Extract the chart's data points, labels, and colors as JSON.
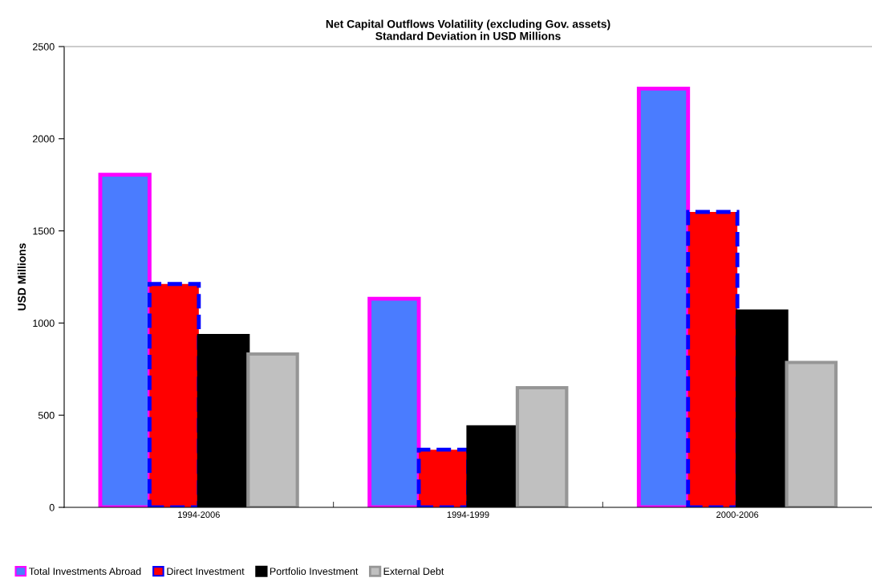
{
  "chart_data": {
    "type": "bar",
    "title": "Net Capital Outflows Volatility (excluding Gov. assets)\nStandard Deviation in USD Millions",
    "ylabel": "USD Millions",
    "categories": [
      "1994-2006",
      "1994-1999",
      "2000-2006"
    ],
    "series": [
      {
        "name": "Total Investments Abroad",
        "color": "#4a7cff",
        "values": [
          1805,
          1132,
          2272
        ]
      },
      {
        "name": "Direct Investment",
        "color": "#ff0000",
        "values": [
          1212,
          313,
          1603
        ]
      },
      {
        "name": "Portfolio Investment",
        "color": "#000000",
        "values": [
          932,
          436,
          1065
        ]
      },
      {
        "name": "External Debt",
        "color": "#c0c0c0",
        "values": [
          832,
          649,
          786
        ]
      }
    ],
    "ylim": [
      0,
      2500
    ],
    "yticks": [
      0,
      500,
      1000,
      1500,
      2000,
      2500
    ],
    "grid": false,
    "legend": "bottom left"
  }
}
